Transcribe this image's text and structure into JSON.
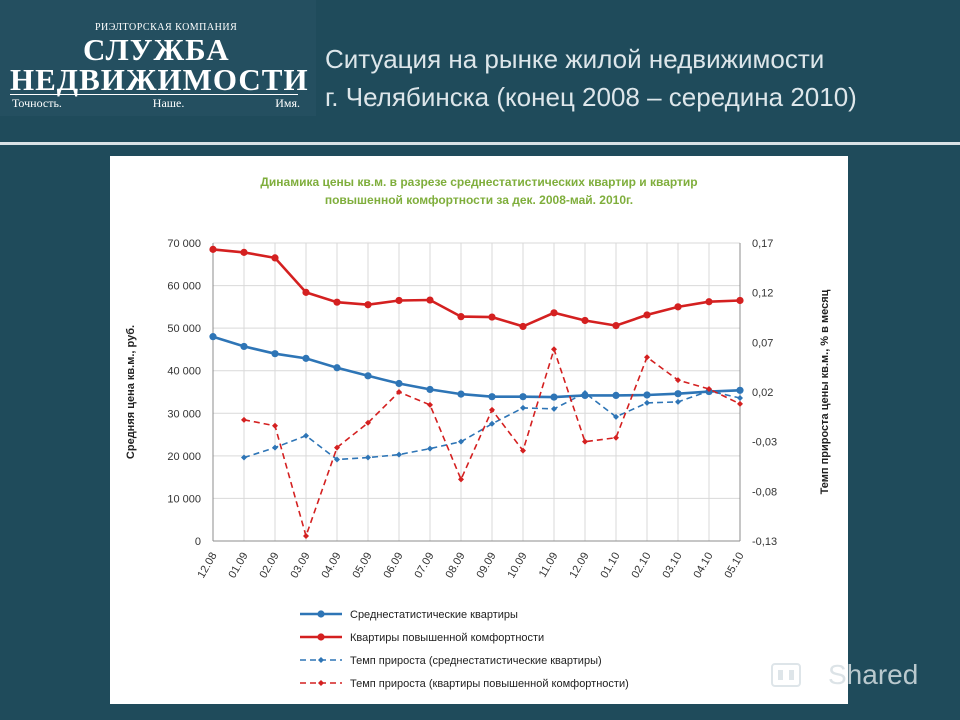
{
  "logo": {
    "company_line": "РИЭЛТОРСКАЯ КОМПАНИЯ",
    "name_line1": "СЛУЖБА",
    "name_line2": "НЕДВИЖИМОСТИ",
    "slogan": [
      "Точность.",
      "Наше.",
      "Имя."
    ]
  },
  "header": {
    "title_line1": "Ситуация на рынке жилой недвижимости",
    "title_line2": "г. Челябинска (конец 2008 – середина 2010)"
  },
  "watermark": {
    "text": "Shared",
    "icon": "slideshare-icon"
  },
  "chart_data": {
    "type": "line",
    "title_line1": "Динамика цены кв.м.  в разрезе среднестатистических квартир и квартир",
    "title_line2": "повышенной комфортности за дек. 2008-май. 2010г.",
    "title_color": "#7fae3c",
    "categories": [
      "12.08",
      "01.09",
      "02.09",
      "03.09",
      "04.09",
      "05.09",
      "06.09",
      "07.09",
      "08.09",
      "09.09",
      "10.09",
      "11.09",
      "12.09",
      "01.10",
      "02.10",
      "03.10",
      "04.10",
      "05.10"
    ],
    "y_left": {
      "label": "Средняя цена кв.м., руб.",
      "min": 0,
      "max": 70000,
      "ticks": [
        0,
        10000,
        20000,
        30000,
        40000,
        50000,
        60000,
        70000
      ],
      "tick_labels": [
        "0",
        "10 000",
        "20 000",
        "30 000",
        "40 000",
        "50 000",
        "60 000",
        "70 000"
      ]
    },
    "y_right": {
      "label": "Темп прироста цены кв.м., % в месяц",
      "min": -0.13,
      "max": 0.17,
      "ticks": [
        -0.13,
        -0.08,
        -0.03,
        0.02,
        0.07,
        0.12,
        0.17
      ],
      "tick_labels": [
        "-0,13",
        "-0,08",
        "-0,03",
        "0,02",
        "0,07",
        "0,12",
        "0,17"
      ]
    },
    "grid": true,
    "legend_position": "bottom",
    "series": [
      {
        "name": "Среднестатистические квартиры",
        "axis": "left",
        "style": "solid",
        "color": "#2e75b6",
        "values": [
          48000,
          45700,
          44000,
          42900,
          40700,
          38800,
          37000,
          35600,
          34500,
          33900,
          33900,
          33800,
          34200,
          34200,
          34300,
          34600,
          35100,
          35400
        ]
      },
      {
        "name": "Квартиры повышенной комфортности",
        "axis": "left",
        "style": "solid",
        "color": "#d42020",
        "values": [
          68500,
          67800,
          66500,
          58400,
          56100,
          55500,
          56500,
          56600,
          52700,
          52600,
          50400,
          53600,
          51800,
          50600,
          53100,
          55000,
          56200,
          56500
        ]
      },
      {
        "name": "Темп прироста (среднестатистические квартиры)",
        "axis": "right",
        "style": "dashed",
        "color": "#2e75b6",
        "values": [
          null,
          -0.046,
          -0.036,
          -0.024,
          -0.048,
          -0.046,
          -0.043,
          -0.037,
          -0.03,
          -0.012,
          0.004,
          0.003,
          0.019,
          -0.005,
          0.009,
          0.01,
          0.021,
          0.014
        ]
      },
      {
        "name": "Темп прироста (квартиры повышенной комфортности)",
        "axis": "right",
        "style": "dashed",
        "color": "#d42020",
        "values": [
          null,
          -0.008,
          -0.014,
          -0.125,
          -0.036,
          -0.011,
          0.02,
          0.007,
          -0.068,
          0.002,
          -0.039,
          0.063,
          -0.03,
          -0.026,
          0.055,
          0.032,
          0.023,
          0.008
        ]
      }
    ]
  }
}
